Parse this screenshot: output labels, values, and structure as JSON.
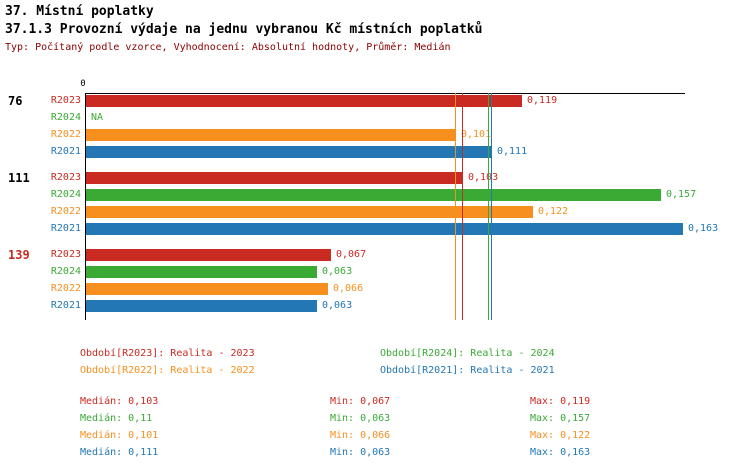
{
  "header": {
    "title": "37. Místní poplatky",
    "subtitle": "37.1.3 Provozní výdaje na jednu vybranou Kč místních poplatků",
    "meta": "Typ: Počítaný podle vzorce, Vyhodnocení: Absolutní hodnoty, Průměr: Medián"
  },
  "colors": {
    "R2023": "#c92a21",
    "R2024": "#3aaa35",
    "R2022": "#f78f1e",
    "R2021": "#2277b4",
    "axis": "#000000",
    "meta_text": "#8b0000"
  },
  "chart_data": {
    "type": "bar",
    "orientation": "horizontal",
    "axis_zero_label": "0",
    "xlim": [
      0,
      0.18
    ],
    "grid": false,
    "legend_position": "bottom",
    "series_order": [
      "R2023",
      "R2024",
      "R2022",
      "R2021"
    ],
    "groups": [
      {
        "label": "76",
        "label_color": "#000000",
        "bars": [
          {
            "series": "R2023",
            "value": 0.119,
            "label": "0,119"
          },
          {
            "series": "R2024",
            "value": null,
            "label": "NA"
          },
          {
            "series": "R2022",
            "value": 0.101,
            "label": "0,101"
          },
          {
            "series": "R2021",
            "value": 0.111,
            "label": "0,111"
          }
        ]
      },
      {
        "label": "111",
        "label_color": "#000000",
        "bars": [
          {
            "series": "R2023",
            "value": 0.103,
            "label": "0,103"
          },
          {
            "series": "R2024",
            "value": 0.157,
            "label": "0,157"
          },
          {
            "series": "R2022",
            "value": 0.122,
            "label": "0,122"
          },
          {
            "series": "R2021",
            "value": 0.163,
            "label": "0,163"
          }
        ]
      },
      {
        "label": "139",
        "label_color": "#c92a21",
        "bars": [
          {
            "series": "R2023",
            "value": 0.067,
            "label": "0,067"
          },
          {
            "series": "R2024",
            "value": 0.063,
            "label": "0,063"
          },
          {
            "series": "R2022",
            "value": 0.066,
            "label": "0,066"
          },
          {
            "series": "R2021",
            "value": 0.063,
            "label": "0,063"
          }
        ]
      }
    ],
    "median_lines": [
      {
        "series": "R2023",
        "value": 0.103
      },
      {
        "series": "R2024",
        "value": 0.11
      },
      {
        "series": "R2022",
        "value": 0.101
      },
      {
        "series": "R2021",
        "value": 0.111
      }
    ],
    "legend": [
      {
        "series": "R2023",
        "label": "Období[R2023]: Realita - 2023"
      },
      {
        "series": "R2024",
        "label": "Období[R2024]: Realita - 2024"
      },
      {
        "series": "R2022",
        "label": "Období[R2022]: Realita - 2022"
      },
      {
        "series": "R2021",
        "label": "Období[R2021]: Realita - 2021"
      }
    ],
    "stats": [
      {
        "series": "R2023",
        "median": "Medián: 0,103",
        "min": "Min: 0,067",
        "max": "Max: 0,119"
      },
      {
        "series": "R2024",
        "median": "Medián: 0,11",
        "min": "Min: 0,063",
        "max": "Max: 0,157"
      },
      {
        "series": "R2022",
        "median": "Medián: 0,101",
        "min": "Min: 0,066",
        "max": "Max: 0,122"
      },
      {
        "series": "R2021",
        "median": "Medián: 0,111",
        "min": "Min: 0,063",
        "max": "Max: 0,163"
      }
    ]
  }
}
